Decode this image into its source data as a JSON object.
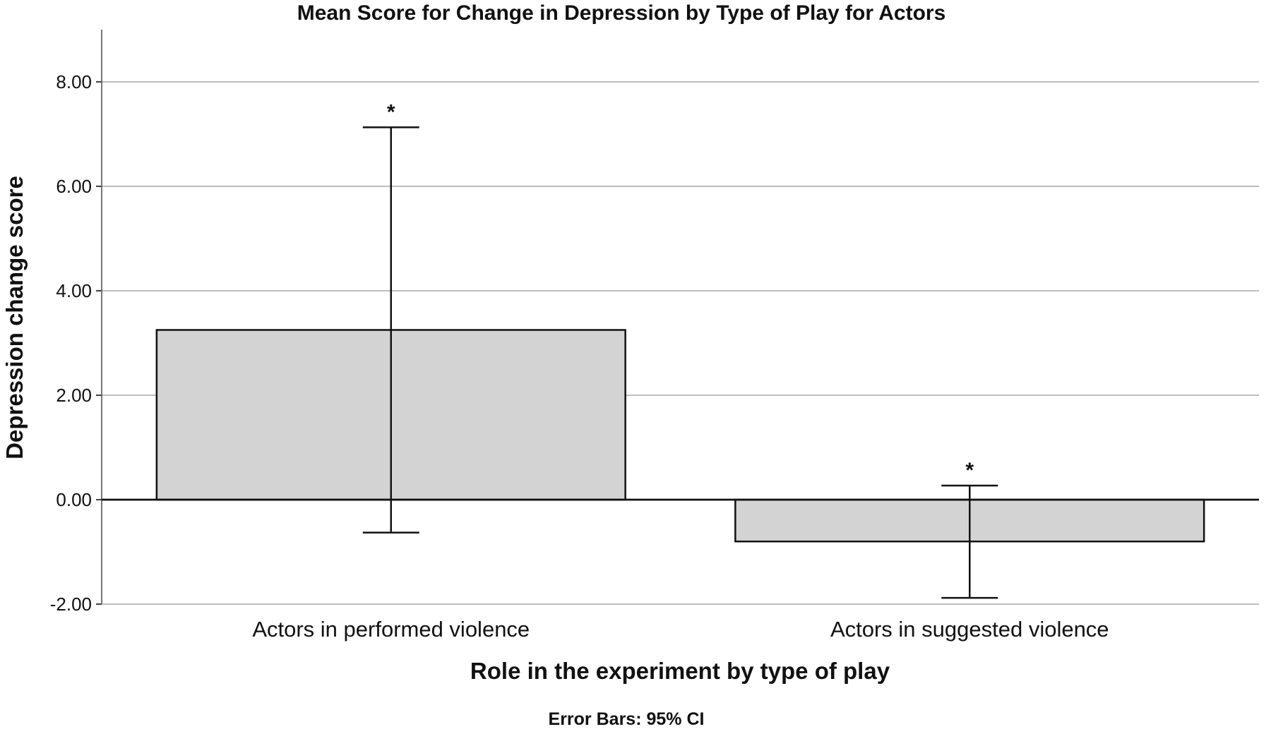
{
  "chart_data": {
    "type": "bar",
    "title": "Mean Score for Change in Depression by Type of Play for Actors",
    "xlabel": "Role in the experiment by type of play",
    "ylabel": "Depression change score",
    "footnote": "Error Bars: 95% CI",
    "categories": [
      "Actors in performed violence",
      "Actors in suggested violence"
    ],
    "values": [
      3.25,
      -0.8
    ],
    "ci_low": [
      -0.63,
      -1.88
    ],
    "ci_high": [
      7.13,
      0.27
    ],
    "annotations": [
      "*",
      "*"
    ],
    "ylim": [
      -2.0,
      9.0
    ],
    "yticks": [
      -2,
      0,
      2,
      4,
      6,
      8
    ],
    "ytick_labels": [
      "-2.00",
      "0.00",
      "2.00",
      "4.00",
      "6.00",
      "8.00"
    ],
    "grid": true,
    "colors": {
      "bar": "#d3d3d3",
      "edge": "#111111",
      "grid": "#a8a8a8"
    }
  }
}
